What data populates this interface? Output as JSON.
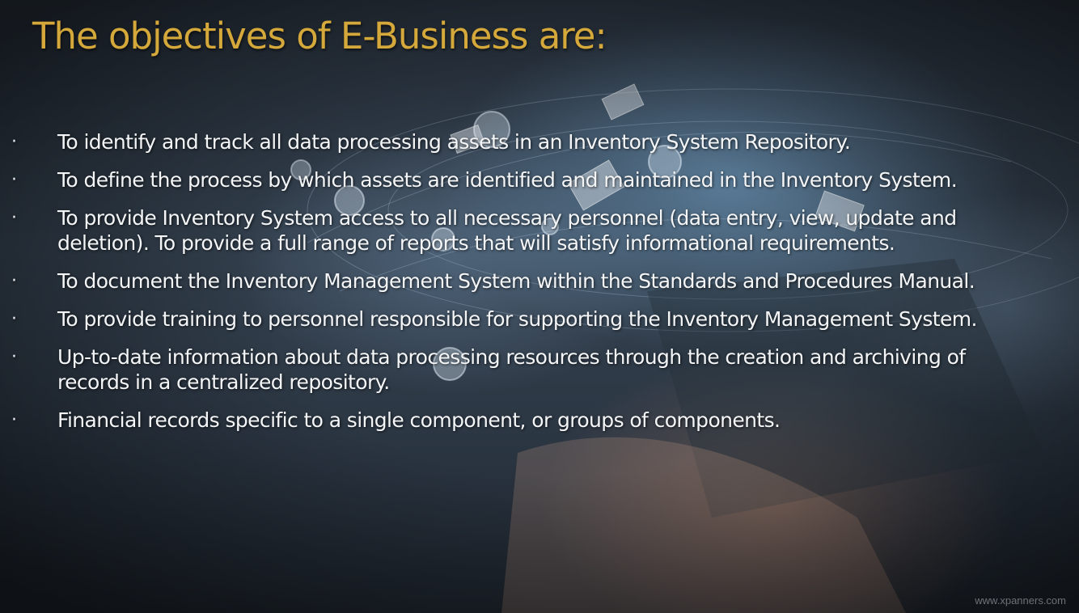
{
  "slide": {
    "title": "The objectives of E-Business are:",
    "bullet_icon": "bullet-dot-icon",
    "bullets": [
      "To identify and track all data processing assets in an Inventory System Repository.",
      "To define the process by which assets are identified and maintained in the Inventory System.",
      " To provide Inventory System access to all necessary personnel (data entry, view, update and deletion). To provide a full range of reports that will satisfy informational requirements.",
      " To document the Inventory Management System within the Standards and Procedures Manual.",
      " To provide training to personnel responsible for supporting the Inventory Management System.",
      "Up-to-date information about data processing resources through the creation and archiving of records in a centralized repository.",
      "Financial records specific to a single component, or groups of components."
    ],
    "watermark": "www.xpanners.com"
  },
  "colors": {
    "title": "#d4a83a",
    "body_text": "#f3f5f7",
    "background": "#2c3744"
  }
}
